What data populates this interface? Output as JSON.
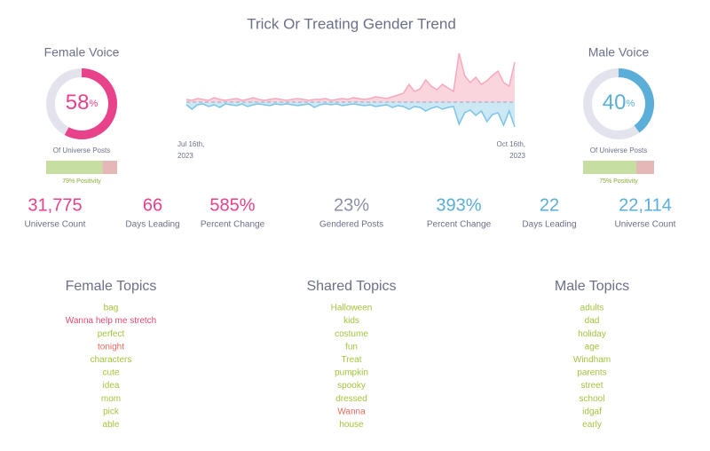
{
  "title": "Trick Or Treating Gender Trend",
  "female": {
    "heading": "Female Voice",
    "share": 58,
    "unit": "%",
    "caption": "Of Universe Posts",
    "positivity": 79,
    "positivity_label": "79% Positivity",
    "color": "#e8428a"
  },
  "male": {
    "heading": "Male Voice",
    "share": 40,
    "unit": "%",
    "caption": "Of Universe Posts",
    "positivity": 75,
    "positivity_label": "75% Positivity",
    "color": "#5aaed8"
  },
  "trend": {
    "start_label": [
      "Jul 16th,",
      "2023"
    ],
    "end_label": [
      "Oct 16th,",
      "2023"
    ],
    "ylim": [
      -60,
      60
    ],
    "female": [
      3,
      2,
      4,
      3,
      2,
      5,
      3,
      2,
      3,
      4,
      2,
      3,
      5,
      3,
      2,
      3,
      4,
      3,
      2,
      3,
      4,
      3,
      2,
      3,
      3,
      4,
      2,
      3,
      4,
      3,
      5,
      4,
      3,
      4,
      6,
      5,
      4,
      6,
      8,
      10,
      20,
      12,
      15,
      25,
      18,
      14,
      20,
      16,
      12,
      55,
      30,
      22,
      28,
      20,
      24,
      30,
      35,
      22,
      18,
      45
    ],
    "male": [
      -3,
      -8,
      -3,
      -2,
      -5,
      -3,
      -6,
      -2,
      -3,
      -4,
      -2,
      -5,
      -3,
      -2,
      -3,
      -4,
      -2,
      -3,
      -2,
      -3,
      -4,
      -3,
      -2,
      -6,
      -3,
      -2,
      -3,
      -2,
      -4,
      -3,
      -2,
      -3,
      -4,
      -3,
      -5,
      -4,
      -3,
      -6,
      -4,
      -5,
      -8,
      -5,
      -6,
      -10,
      -7,
      -5,
      -8,
      -6,
      -5,
      -25,
      -12,
      -9,
      -15,
      -10,
      -22,
      -14,
      -12,
      -26,
      -10,
      -28
    ]
  },
  "stats": [
    {
      "text": "31,775",
      "value": 31775,
      "label": "Universe Count",
      "color": "#e8428a"
    },
    {
      "text": "66",
      "value": 66,
      "label": "Days Leading",
      "color": "#e8428a"
    },
    {
      "text": "585%",
      "value": 585,
      "label": "Percent Change",
      "color": "#e8428a"
    },
    {
      "text": "23%",
      "value": 23,
      "label": "Gendered Posts",
      "color": "#8a90a6"
    },
    {
      "text": "393%",
      "value": 393,
      "label": "Percent Change",
      "color": "#5aaed8"
    },
    {
      "text": "22",
      "value": 22,
      "label": "Days Leading",
      "color": "#5aaed8"
    },
    {
      "text": "22,114",
      "value": 22114,
      "label": "Universe Count",
      "color": "#5aaed8"
    }
  ],
  "topics": [
    {
      "heading": "Female Topics",
      "items": [
        {
          "text": "bag",
          "color": "#a3c43f"
        },
        {
          "text": "Wanna help me stretch",
          "color": "#e24a72"
        },
        {
          "text": "perfect",
          "color": "#a3c43f"
        },
        {
          "text": "tonight",
          "color": "#e86a5c"
        },
        {
          "text": "characters",
          "color": "#a3c43f"
        },
        {
          "text": "cute",
          "color": "#a3c43f"
        },
        {
          "text": "idea",
          "color": "#a3c43f"
        },
        {
          "text": "mom",
          "color": "#a3c43f"
        },
        {
          "text": "pick",
          "color": "#a3c43f"
        },
        {
          "text": "able",
          "color": "#a3c43f"
        }
      ]
    },
    {
      "heading": "Shared Topics",
      "items": [
        {
          "text": "Halloween",
          "color": "#a3c43f"
        },
        {
          "text": "kids",
          "color": "#a3c43f"
        },
        {
          "text": "costume",
          "color": "#a3c43f"
        },
        {
          "text": "fun",
          "color": "#a3c43f"
        },
        {
          "text": "Treat",
          "color": "#a3c43f"
        },
        {
          "text": "pumpkin",
          "color": "#a3c43f"
        },
        {
          "text": "spooky",
          "color": "#a3c43f"
        },
        {
          "text": "dressed",
          "color": "#a3c43f"
        },
        {
          "text": "Wanna",
          "color": "#e86a5c"
        },
        {
          "text": "house",
          "color": "#a3c43f"
        }
      ]
    },
    {
      "heading": "Male Topics",
      "items": [
        {
          "text": "adults",
          "color": "#a3c43f"
        },
        {
          "text": "dad",
          "color": "#a3c43f"
        },
        {
          "text": "holiday",
          "color": "#a3c43f"
        },
        {
          "text": "age",
          "color": "#a3c43f"
        },
        {
          "text": "Windham",
          "color": "#a3c43f"
        },
        {
          "text": "parents",
          "color": "#a3c43f"
        },
        {
          "text": "street",
          "color": "#a3c43f"
        },
        {
          "text": "school",
          "color": "#a3c43f"
        },
        {
          "text": "idgaf",
          "color": "#a3c43f"
        },
        {
          "text": "early",
          "color": "#a3c43f"
        }
      ]
    }
  ]
}
